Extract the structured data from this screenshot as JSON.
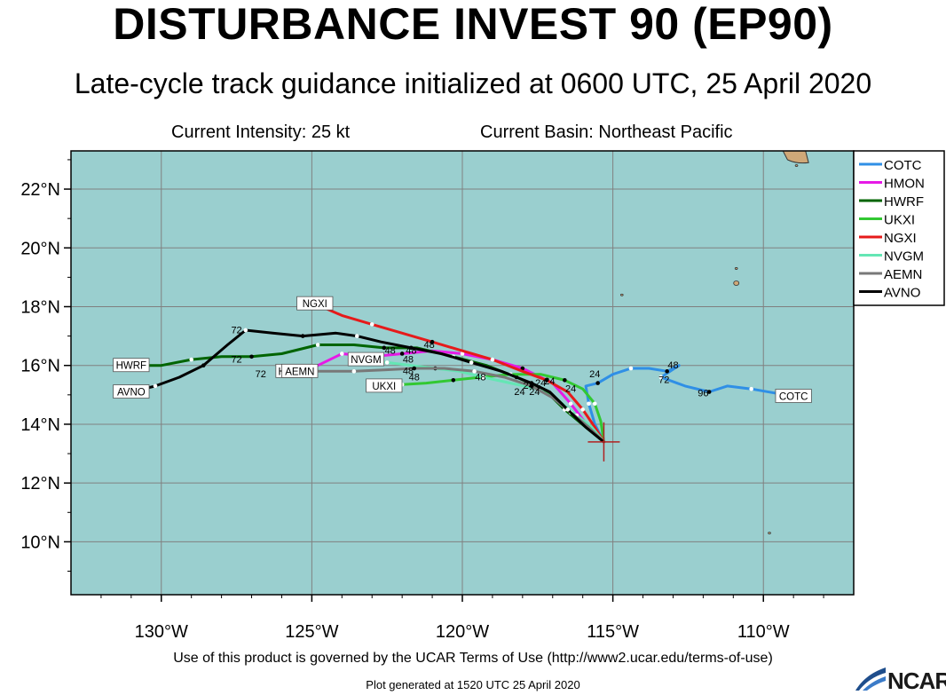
{
  "header": {
    "title": "DISTURBANCE INVEST 90 (EP90)",
    "subtitle": "Late-cycle track guidance initialized at 0600 UTC, 25 April 2020",
    "intensity": "Current Intensity: 25 kt",
    "basin": "Current Basin: Northeast Pacific"
  },
  "footer": {
    "terms": "Use of this product is governed by the UCAR Terms of Use (http://www2.ucar.edu/terms-of-use)",
    "generated": "Plot generated at 1520 UTC   25 April 2020",
    "logo": "NCAR"
  },
  "colors": {
    "ocean": "#9acfcf",
    "land": "#cfa878",
    "grid": "#808080"
  },
  "map": {
    "lon_range": [
      -133,
      -107
    ],
    "lat_range": [
      8.2,
      23.3
    ],
    "lat_ticks": [
      {
        "value": 22,
        "label": "22°N"
      },
      {
        "value": 20,
        "label": "20°N"
      },
      {
        "value": 18,
        "label": "18°N"
      },
      {
        "value": 16,
        "label": "16°N"
      },
      {
        "value": 14,
        "label": "14°N"
      },
      {
        "value": 12,
        "label": "12°N"
      },
      {
        "value": 10,
        "label": "10°N"
      }
    ],
    "lon_ticks": [
      {
        "value": -130,
        "label": "130°W"
      },
      {
        "value": -125,
        "label": "125°W"
      },
      {
        "value": -120,
        "label": "120°W"
      },
      {
        "value": -115,
        "label": "115°W"
      },
      {
        "value": -110,
        "label": "110°W"
      }
    ],
    "storm_position": {
      "lon": -115.3,
      "lat": 13.4
    },
    "legend": [
      {
        "name": "COTC",
        "color": "#2f8fe6"
      },
      {
        "name": "HMON",
        "color": "#e61ae6"
      },
      {
        "name": "HWRF",
        "color": "#006400"
      },
      {
        "name": "UKXI",
        "color": "#32c832"
      },
      {
        "name": "NGXI",
        "color": "#e61a1a"
      },
      {
        "name": "NVGM",
        "color": "#64e6b4"
      },
      {
        "name": "AEMN",
        "color": "#787878"
      },
      {
        "name": "AVNO",
        "color": "#000000"
      }
    ],
    "tracks": [
      {
        "name": "COTC",
        "color": "#2f8fe6",
        "label": "COTC",
        "points": [
          [
            -115.3,
            13.4
          ],
          [
            -115.6,
            14.0
          ],
          [
            -115.8,
            14.7
          ],
          [
            -115.9,
            15.3
          ],
          [
            -115.5,
            15.4
          ],
          [
            -115.0,
            15.7
          ],
          [
            -114.4,
            15.9
          ],
          [
            -113.8,
            15.9
          ],
          [
            -113.2,
            15.8
          ],
          [
            -112.8,
            16.0
          ],
          [
            -113.4,
            15.6
          ],
          [
            -112.6,
            15.3
          ],
          [
            -111.8,
            15.1
          ],
          [
            -111.2,
            15.3
          ],
          [
            -110.4,
            15.2
          ],
          [
            -109.0,
            14.95
          ]
        ]
      },
      {
        "name": "HMON",
        "color": "#e61ae6",
        "label": "HMON",
        "points": [
          [
            -115.3,
            13.4
          ],
          [
            -115.8,
            13.9
          ],
          [
            -116.4,
            14.7
          ],
          [
            -117.0,
            15.4
          ],
          [
            -118.0,
            15.9
          ],
          [
            -119.0,
            16.2
          ],
          [
            -120.0,
            16.4
          ],
          [
            -121.0,
            16.5
          ],
          [
            -122.0,
            16.4
          ],
          [
            -123.0,
            16.3
          ],
          [
            -124.0,
            16.4
          ],
          [
            -124.8,
            16.0
          ],
          [
            -125.6,
            15.8
          ]
        ]
      },
      {
        "name": "HWRF",
        "color": "#006400",
        "label": "HWRF",
        "points": [
          [
            -115.3,
            13.4
          ],
          [
            -115.9,
            13.9
          ],
          [
            -116.6,
            14.5
          ],
          [
            -117.3,
            15.2
          ],
          [
            -118.2,
            15.6
          ],
          [
            -119.2,
            16.0
          ],
          [
            -120.3,
            16.3
          ],
          [
            -121.5,
            16.6
          ],
          [
            -122.6,
            16.6
          ],
          [
            -123.6,
            16.7
          ],
          [
            -124.8,
            16.7
          ],
          [
            -126.0,
            16.4
          ],
          [
            -127.0,
            16.3
          ],
          [
            -128.0,
            16.3
          ],
          [
            -129.0,
            16.2
          ],
          [
            -130.0,
            16.0
          ],
          [
            -131.0,
            16.0
          ]
        ]
      },
      {
        "name": "UKXI",
        "color": "#32c832",
        "label": "UKXI",
        "points": [
          [
            -115.3,
            13.4
          ],
          [
            -115.4,
            14.1
          ],
          [
            -115.6,
            14.7
          ],
          [
            -116.0,
            15.2
          ],
          [
            -116.6,
            15.5
          ],
          [
            -117.4,
            15.7
          ],
          [
            -118.4,
            15.7
          ],
          [
            -119.4,
            15.6
          ],
          [
            -120.3,
            15.5
          ],
          [
            -121.2,
            15.4
          ],
          [
            -122.0,
            15.35
          ],
          [
            -122.6,
            15.3
          ]
        ]
      },
      {
        "name": "NGXI",
        "color": "#e61a1a",
        "label": "NGXI",
        "points": [
          [
            -115.3,
            13.4
          ],
          [
            -115.6,
            13.9
          ],
          [
            -116.0,
            14.5
          ],
          [
            -116.5,
            15.1
          ],
          [
            -117.2,
            15.5
          ],
          [
            -118.0,
            15.8
          ],
          [
            -119.0,
            16.2
          ],
          [
            -120.0,
            16.5
          ],
          [
            -121.0,
            16.8
          ],
          [
            -122.0,
            17.1
          ],
          [
            -123.0,
            17.4
          ],
          [
            -124.0,
            17.7
          ],
          [
            -124.9,
            18.1
          ]
        ]
      },
      {
        "name": "NVGM",
        "color": "#64e6b4",
        "label": "NVGM",
        "points": [
          [
            -115.3,
            13.4
          ],
          [
            -115.7,
            13.9
          ],
          [
            -116.2,
            14.3
          ],
          [
            -116.8,
            14.8
          ],
          [
            -117.5,
            15.2
          ],
          [
            -118.4,
            15.4
          ],
          [
            -119.3,
            15.6
          ],
          [
            -120.1,
            15.8
          ],
          [
            -120.9,
            15.9
          ],
          [
            -121.7,
            16.0
          ],
          [
            -122.5,
            16.1
          ],
          [
            -123.2,
            16.2
          ]
        ]
      },
      {
        "name": "AEMN",
        "color": "#787878",
        "label": "AEMN",
        "points": [
          [
            -115.3,
            13.4
          ],
          [
            -115.8,
            13.9
          ],
          [
            -116.4,
            14.4
          ],
          [
            -117.0,
            14.9
          ],
          [
            -117.7,
            15.3
          ],
          [
            -118.6,
            15.6
          ],
          [
            -119.6,
            15.8
          ],
          [
            -120.6,
            15.9
          ],
          [
            -121.6,
            15.9
          ],
          [
            -122.6,
            15.85
          ],
          [
            -123.6,
            15.8
          ],
          [
            -124.6,
            15.8
          ],
          [
            -125.4,
            15.8
          ]
        ]
      },
      {
        "name": "AVNO",
        "color": "#000000",
        "label": "AVNO",
        "points": [
          [
            -115.3,
            13.4
          ],
          [
            -115.9,
            13.9
          ],
          [
            -116.5,
            14.5
          ],
          [
            -117.1,
            15.1
          ],
          [
            -117.7,
            15.4
          ],
          [
            -118.7,
            15.8
          ],
          [
            -119.7,
            16.1
          ],
          [
            -120.7,
            16.4
          ],
          [
            -121.7,
            16.6
          ],
          [
            -122.7,
            16.8
          ],
          [
            -123.5,
            17.0
          ],
          [
            -124.2,
            17.1
          ],
          [
            -125.3,
            17.0
          ],
          [
            -126.3,
            17.1
          ],
          [
            -127.2,
            17.2
          ],
          [
            -127.8,
            16.7
          ],
          [
            -128.6,
            16.0
          ],
          [
            -129.4,
            15.6
          ],
          [
            -130.2,
            15.3
          ],
          [
            -131.0,
            15.1
          ]
        ]
      }
    ],
    "hour_labels": [
      {
        "text": "72",
        "lon": -125.2,
        "lat": 17.9
      },
      {
        "text": "72",
        "lon": -127.5,
        "lat": 17.1
      },
      {
        "text": "72",
        "lon": -127.5,
        "lat": 16.1
      },
      {
        "text": "72",
        "lon": -126.7,
        "lat": 15.6
      },
      {
        "text": "72",
        "lon": -122.3,
        "lat": 15.1
      },
      {
        "text": "72",
        "lon": -113.3,
        "lat": 15.4
      },
      {
        "text": "48",
        "lon": -121.1,
        "lat": 16.6
      },
      {
        "text": "48",
        "lon": -122.4,
        "lat": 16.4
      },
      {
        "text": "48",
        "lon": -121.7,
        "lat": 16.4
      },
      {
        "text": "48",
        "lon": -121.8,
        "lat": 16.1
      },
      {
        "text": "48",
        "lon": -121.8,
        "lat": 15.7
      },
      {
        "text": "48",
        "lon": -121.6,
        "lat": 15.5
      },
      {
        "text": "48",
        "lon": -119.4,
        "lat": 15.5
      },
      {
        "text": "48",
        "lon": -113.0,
        "lat": 15.9
      },
      {
        "text": "24",
        "lon": -115.6,
        "lat": 15.6
      },
      {
        "text": "24",
        "lon": -116.4,
        "lat": 15.1
      },
      {
        "text": "24",
        "lon": -117.8,
        "lat": 15.2
      },
      {
        "text": "24",
        "lon": -117.4,
        "lat": 15.3
      },
      {
        "text": "24",
        "lon": -117.1,
        "lat": 15.35
      },
      {
        "text": "24",
        "lon": -118.1,
        "lat": 15.0
      },
      {
        "text": "24",
        "lon": -117.6,
        "lat": 15.0
      },
      {
        "text": "96",
        "lon": -112.0,
        "lat": 14.95
      }
    ],
    "islands": [
      {
        "lon": -108.9,
        "lat": 22.8
      },
      {
        "lon": -110.9,
        "lat": 18.8
      },
      {
        "lon": -110.9,
        "lat": 19.3
      },
      {
        "lon": -114.7,
        "lat": 18.4
      },
      {
        "lon": -109.8,
        "lat": 10.3
      }
    ]
  }
}
